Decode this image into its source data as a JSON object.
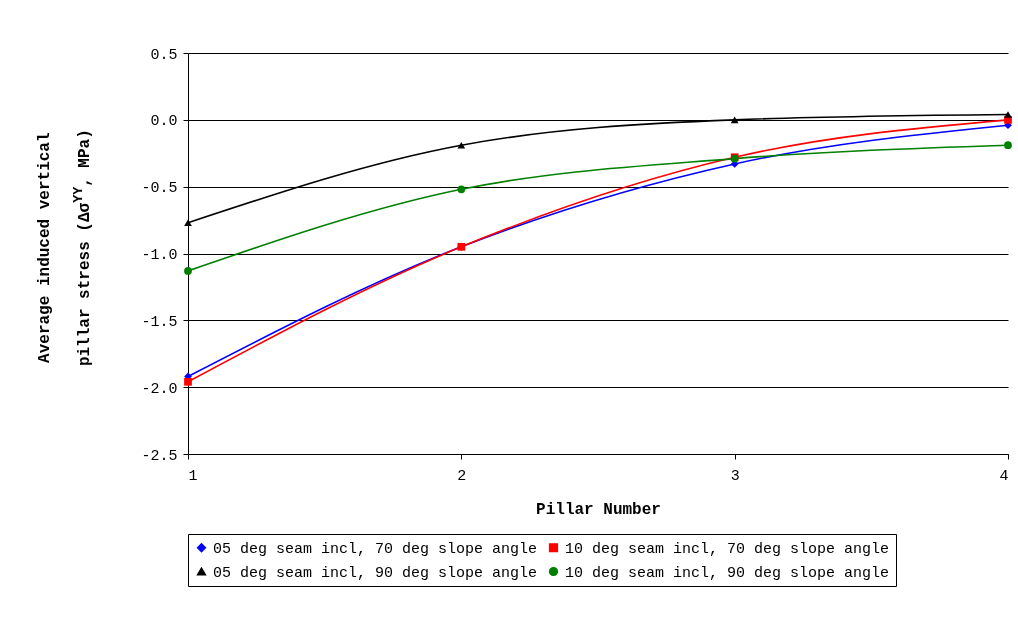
{
  "chart_data": {
    "type": "line",
    "xlabel": "Pillar Number",
    "ylabel": "Average induced vertical pillar stress  (Δσ$^{YY}$, MPa)",
    "x": [
      1,
      2,
      3,
      4
    ],
    "xlim": [
      1,
      4
    ],
    "xticks": [
      1,
      2,
      3,
      4
    ],
    "ylim": [
      -2.5,
      0.5
    ],
    "yticks": [
      {
        "value": -2.5,
        "label": "-2.5"
      },
      {
        "value": -2,
        "label": "-2.0"
      },
      {
        "value": -1.5,
        "label": "-1.5"
      },
      {
        "value": -1,
        "label": "-1.0"
      },
      {
        "value": -0.5,
        "label": "-0.5"
      },
      {
        "value": 0,
        "label": "0.0"
      },
      {
        "value": 0.5,
        "label": "0.5"
      }
    ],
    "grid": "y",
    "legend": "bottom",
    "line_style": "solid",
    "series": [
      {
        "name": "05 deg seam incl, 70 deg slope angle",
        "color": "#0000ff",
        "marker": "diamond",
        "values": [
          -1.92,
          -0.95,
          -0.33,
          -0.04
        ]
      },
      {
        "name": "10 deg seam incl, 70 deg slope angle",
        "color": "#ff0000",
        "marker": "square",
        "values": [
          -1.96,
          -0.95,
          -0.28,
          0.0
        ]
      },
      {
        "name": "05 deg seam incl, 90 deg slope angle",
        "color": "#000000",
        "marker": "triangle",
        "values": [
          -0.77,
          -0.19,
          0.0,
          0.04
        ]
      },
      {
        "name": "10 deg seam incl, 90 deg slope angle",
        "color": "#008000",
        "marker": "circle",
        "values": [
          -1.13,
          -0.52,
          -0.29,
          -0.19
        ]
      }
    ]
  }
}
